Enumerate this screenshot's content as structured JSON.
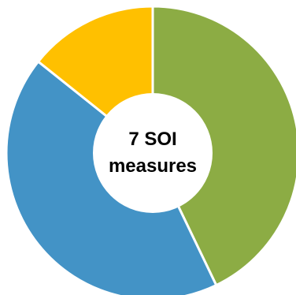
{
  "chart_data": {
    "type": "pie",
    "title": "",
    "hole": "donut",
    "center_label_lines": [
      "7 SOI",
      "measures"
    ],
    "slices": [
      {
        "value": 3,
        "color": "#8CAC44"
      },
      {
        "value": 3,
        "color": "#4393C6"
      },
      {
        "value": 1,
        "color": "#FFC000"
      }
    ]
  }
}
